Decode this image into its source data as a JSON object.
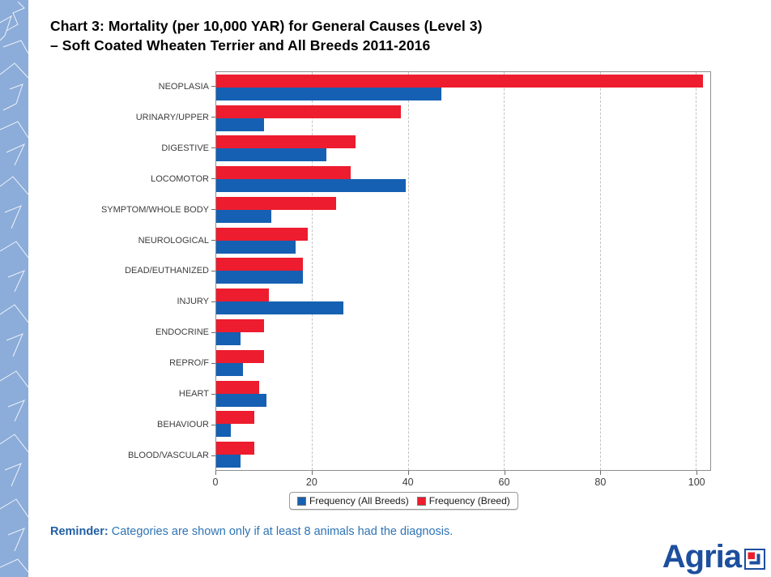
{
  "page": {
    "background": "#ffffff",
    "side_strip_color": "#8cacd9"
  },
  "title": {
    "line1": "Chart 3: Mortality (per 10,000 YAR) for General Causes (Level 3)",
    "line2": "–  Soft Coated Wheaten Terrier and All Breeds 2011-2016"
  },
  "chart_data": {
    "type": "bar",
    "orientation": "horizontal",
    "title": "Chart 3: Mortality (per 10,000 YAR) for General Causes (Level 3) – Soft Coated Wheaten Terrier and All Breeds 2011-2016",
    "categories": [
      "NEOPLASIA",
      "URINARY/UPPER",
      "DIGESTIVE",
      "LOCOMOTOR",
      "SYMPTOM/WHOLE BODY",
      "NEUROLOGICAL",
      "DEAD/EUTHANIZED",
      "INJURY",
      "ENDOCRINE",
      "REPRO/F",
      "HEART",
      "BEHAVIOUR",
      "BLOOD/VASCULAR"
    ],
    "series": [
      {
        "name": "Frequency (Breed)",
        "key": "breed",
        "color": "#ed1c2e",
        "values": [
          101.5,
          38.5,
          29,
          28,
          25,
          19,
          18,
          11,
          10,
          10,
          9,
          8,
          8
        ]
      },
      {
        "name": "Frequency (All Breeds)",
        "key": "all-breeds",
        "color": "#1560b2",
        "values": [
          47,
          10,
          23,
          39.5,
          11.5,
          16.5,
          18,
          26.5,
          5,
          5.5,
          10.5,
          3,
          5
        ]
      }
    ],
    "xlabel": "",
    "ylabel": "",
    "xlim": [
      0,
      103
    ],
    "xticks": [
      0,
      20,
      40,
      60,
      80,
      100
    ],
    "grid": "vertical-dashed",
    "legend_position": "bottom-center"
  },
  "legend": {
    "items": [
      {
        "label": "Frequency (All Breeds)",
        "color": "#1560b2",
        "key": "all-breeds"
      },
      {
        "label": "Frequency (Breed)",
        "color": "#ed1c2e",
        "key": "breed"
      }
    ]
  },
  "reminder": {
    "label": "Reminder:",
    "text": " Categories are shown only if at least 8 animals had the diagnosis."
  },
  "logo": {
    "text": "Agria",
    "color": "#1d4f9e",
    "mark_red": "#e8202c"
  }
}
